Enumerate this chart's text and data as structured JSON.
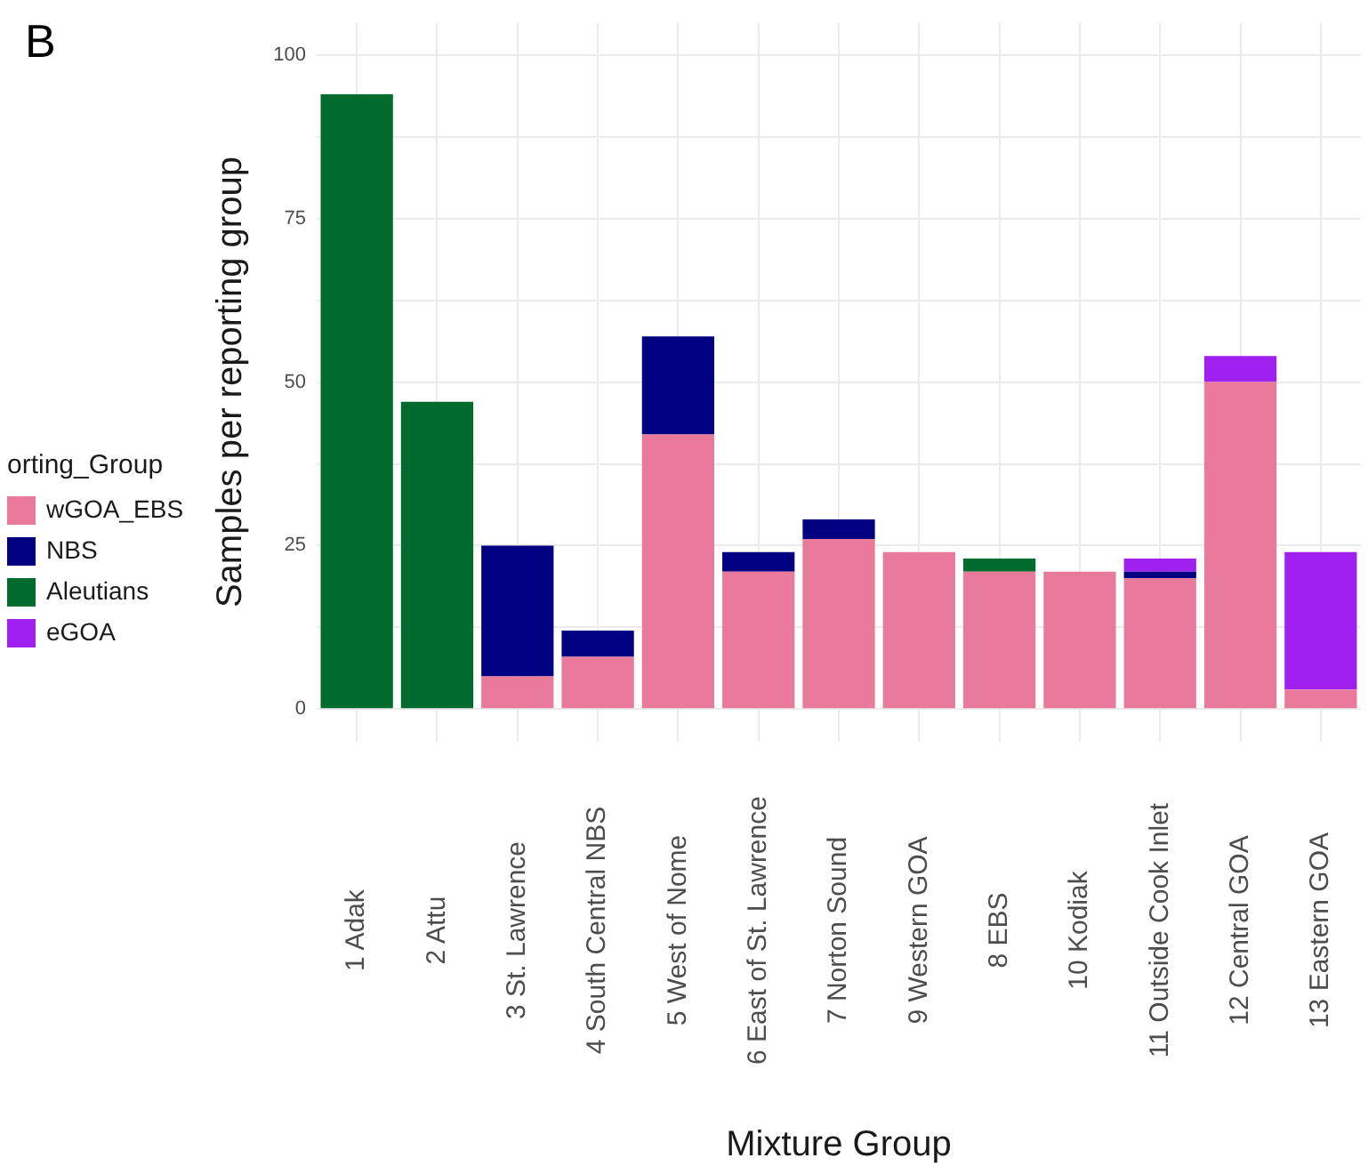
{
  "chart_data": {
    "type": "bar",
    "stacked": true,
    "annotations": [
      "B"
    ],
    "xlabel": "Mixture Group",
    "ylabel": "Samples per reporting group",
    "legend": "left",
    "legend_title": "orting_Group",
    "categories": [
      "1 Adak",
      "2 Attu",
      "3 St. Lawrence",
      "4 South Central NBS",
      "5 West of Nome",
      "6 East of St. Lawrence",
      "7 Norton Sound",
      "9 Western GOA",
      "8 EBS",
      "10 Kodiak",
      "11 Outside Cook Inlet",
      "12 Central GOA",
      "13 Eastern GOA"
    ],
    "series": [
      {
        "name": "wGOA_EBS",
        "color": "#e97a9b",
        "values": [
          null,
          null,
          5,
          8,
          42,
          21,
          26,
          24,
          21,
          21,
          20,
          50,
          3
        ]
      },
      {
        "name": "NBS",
        "color": "#000080",
        "values": [
          null,
          null,
          20,
          4,
          15,
          3,
          3,
          null,
          null,
          null,
          1,
          null,
          null
        ]
      },
      {
        "name": "Aleutians",
        "color": "#006b2d",
        "values": [
          94,
          47,
          null,
          null,
          null,
          null,
          null,
          null,
          2,
          null,
          null,
          null,
          null
        ]
      },
      {
        "name": "eGOA",
        "color": "#a020f0",
        "values": [
          null,
          null,
          null,
          null,
          null,
          null,
          null,
          null,
          null,
          null,
          2,
          4,
          21
        ]
      }
    ],
    "ylim": [
      -5,
      105
    ],
    "yticks": [
      0,
      {
        "value": 12.5,
        "label": null
      },
      25,
      {
        "value": 37.5,
        "label": null
      },
      50,
      {
        "value": 62.5,
        "label": null
      },
      75,
      {
        "value": 87.5,
        "label": null
      },
      100
    ],
    "grid": true
  }
}
